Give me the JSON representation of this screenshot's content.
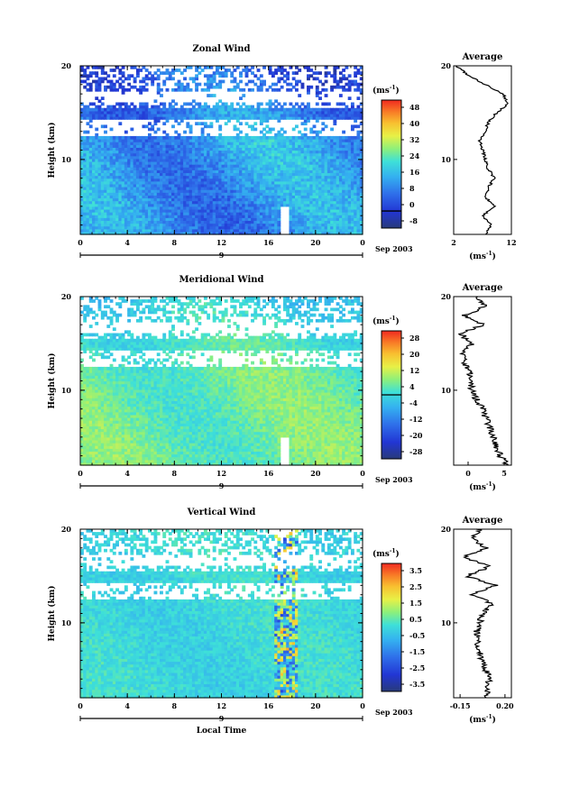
{
  "chart_data": [
    {
      "type": "heatmap",
      "title": "Zonal Wind",
      "ylabel": "Height (km)",
      "xlabel": "",
      "xlim": [
        0,
        24
      ],
      "ylim": [
        2,
        20
      ],
      "xticks": [
        "0",
        "4",
        "8",
        "12",
        "16",
        "20",
        "0"
      ],
      "yticks": [
        "10",
        "20"
      ],
      "date_label": "9",
      "date_suffix": "Sep 2003",
      "colorbar": {
        "unit": "(ms",
        "unit_sup": "-1",
        "unit_close": ")",
        "ticks": [
          "48",
          "40",
          "32",
          "24",
          "16",
          "8",
          "0",
          "-8"
        ],
        "range": [
          -8,
          52
        ],
        "contour_at": 0
      },
      "field": {
        "base": 16,
        "surface": 12,
        "upper": 4,
        "variation": 6,
        "noise": 5,
        "gap": [
          12.5,
          13.2
        ],
        "gap2": [
          16,
          16.5
        ]
      },
      "profile": {
        "title": "Average",
        "xlim": [
          2,
          12
        ],
        "xticks": [
          "2",
          "12"
        ],
        "unit": "(ms",
        "unit_sup": "-1",
        "unit_close": ")",
        "heights": [
          2,
          3,
          4,
          5,
          6,
          7,
          8,
          9,
          10,
          11,
          12,
          13,
          14,
          15,
          16,
          17,
          18,
          19,
          20
        ],
        "values": [
          7.5,
          8.5,
          7,
          9,
          7.5,
          8,
          9,
          8,
          7.5,
          7,
          6.5,
          7.5,
          8,
          9.5,
          11.5,
          10.5,
          7.5,
          4.5,
          2.5
        ]
      }
    },
    {
      "type": "heatmap",
      "title": "Meridional Wind",
      "ylabel": "Height (km)",
      "xlabel": "",
      "xlim": [
        0,
        24
      ],
      "ylim": [
        2,
        20
      ],
      "xticks": [
        "0",
        "4",
        "8",
        "12",
        "16",
        "20",
        "0"
      ],
      "yticks": [
        "10",
        "20"
      ],
      "date_label": "9",
      "date_suffix": "Sep 2003",
      "colorbar": {
        "unit": "(ms",
        "unit_sup": "-1",
        "unit_close": ")",
        "ticks": [
          "28",
          "20",
          "12",
          "4",
          "-4",
          "-12",
          "-20",
          "-28"
        ],
        "range": [
          -30,
          30
        ],
        "contour_at": 0
      },
      "field": {
        "base": 4,
        "surface": 5,
        "upper": -2,
        "variation": 3,
        "noise": 3,
        "gap": [
          12.5,
          13.2
        ],
        "gap2": [
          16,
          16.5
        ]
      },
      "profile": {
        "title": "Average",
        "xlim": [
          -2,
          6
        ],
        "xticks": [
          "0",
          "5"
        ],
        "unit": "(ms",
        "unit_sup": "-1",
        "unit_close": ")",
        "heights": [
          2,
          3,
          4,
          5,
          6,
          7,
          8,
          9,
          10,
          11,
          12,
          13,
          14,
          15,
          16,
          17,
          18,
          19,
          20
        ],
        "values": [
          5.5,
          4.5,
          3.8,
          3.5,
          3,
          2.5,
          2,
          1.2,
          0.5,
          0.3,
          0.2,
          -0.5,
          -0.8,
          0.5,
          -1,
          2,
          -0.5,
          2.5,
          1
        ]
      }
    },
    {
      "type": "heatmap",
      "title": "Vertical Wind",
      "ylabel": "Height (km)",
      "xlabel": "Local Time",
      "xlim": [
        0,
        24
      ],
      "ylim": [
        2,
        20
      ],
      "xticks": [
        "0",
        "4",
        "8",
        "12",
        "16",
        "20",
        "0"
      ],
      "yticks": [
        "10",
        "20"
      ],
      "date_label": "9",
      "date_suffix": "Sep 2003",
      "colorbar": {
        "unit": "(ms",
        "unit_sup": "-1",
        "unit_close": ")",
        "ticks": [
          "3.5",
          "2.5",
          "1.5",
          "0.5",
          "-0.5",
          "-1.5",
          "-2.5",
          "-3.5"
        ],
        "range": [
          -4,
          4
        ],
        "contour_at": null
      },
      "field": {
        "base": 0,
        "surface": 0,
        "upper": 0,
        "variation": 0.2,
        "noise": 0.4,
        "gap": [
          12.5,
          13.2
        ],
        "gap2": [
          16,
          16.5
        ]
      },
      "profile": {
        "title": "Average",
        "xlim": [
          -0.2,
          0.25
        ],
        "xticks": [
          "-0.15",
          "0.20"
        ],
        "unit": "(ms",
        "unit_sup": "-1",
        "unit_close": ")",
        "heights": [
          2,
          3,
          4,
          5,
          6,
          7,
          8,
          9,
          10,
          11,
          12,
          13,
          14,
          15,
          16,
          17,
          18,
          19,
          20
        ],
        "values": [
          0.05,
          0.06,
          0.08,
          0.05,
          0.02,
          0.0,
          -0.02,
          -0.02,
          0.0,
          0.03,
          0.1,
          -0.05,
          0.12,
          -0.1,
          0.08,
          -0.12,
          0.05,
          -0.05,
          0.0
        ]
      }
    }
  ]
}
